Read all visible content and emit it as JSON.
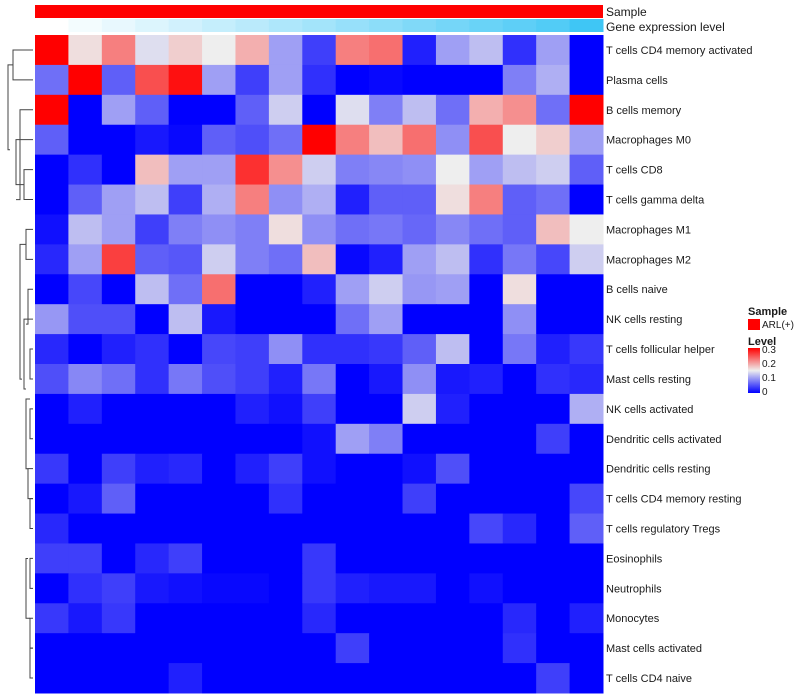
{
  "chart_data": {
    "type": "heatmap",
    "annotations": {
      "sample_label": "Sample",
      "expression_label": "Gene expression level",
      "sample_color": "#ff0000",
      "expression_colors": [
        "#ffffff",
        "#3fc6f5"
      ]
    },
    "legend": {
      "position": "right",
      "sample_title": "Sample",
      "sample_entry": "ARL(+)",
      "level_title": "Level",
      "level_ticks": [
        "0.3",
        "0.2",
        "0.1",
        "0"
      ],
      "scale": {
        "min": 0,
        "mid": 0.15,
        "max": 0.3,
        "colors": [
          "#0000ff",
          "#eeeeee",
          "#ff0000"
        ]
      }
    },
    "rows": [
      "T cells CD4 memory activated",
      "Plasma cells",
      "B cells memory",
      "Macrophages M0",
      "T cells CD8",
      "T cells gamma delta",
      "Macrophages M1",
      "Macrophages M2",
      "B cells naive",
      "NK cells resting",
      "T cells follicular helper",
      "Mast cells resting",
      "NK cells activated",
      "Dendritic cells activated",
      "Dendritic cells resting",
      "T cells CD4 memory resting",
      "T cells regulatory  Tregs",
      "Eosinophils",
      "Neutrophils",
      "Monocytes",
      "Mast cells activated",
      "T cells CD4 naive"
    ],
    "values": [
      [
        0.3,
        0.16,
        0.22,
        0.14,
        0.17,
        0.15,
        0.19,
        0.1,
        0.04,
        0.22,
        0.23,
        0.02,
        0.1,
        0.12,
        0.03,
        0.1,
        0
      ],
      [
        0.07,
        0.3,
        0.06,
        0.25,
        0.29,
        0.1,
        0.04,
        0.1,
        0.03,
        0,
        0.005,
        0,
        0,
        0,
        0.08,
        0.11,
        0
      ],
      [
        0.3,
        0,
        0.1,
        0.06,
        0,
        0,
        0.06,
        0.13,
        0,
        0.14,
        0.08,
        0.12,
        0.07,
        0.19,
        0.21,
        0.07,
        0.3
      ],
      [
        0.06,
        0,
        0,
        0.015,
        0.005,
        0.06,
        0.05,
        0.07,
        0.3,
        0.22,
        0.18,
        0.23,
        0.09,
        0.25,
        0.15,
        0.17,
        0.1
      ],
      [
        0,
        0.03,
        0,
        0.18,
        0.1,
        0.1,
        0.27,
        0.21,
        0.13,
        0.08,
        0.085,
        0.09,
        0.15,
        0.1,
        0.12,
        0.13,
        0.06
      ],
      [
        0,
        0.06,
        0.1,
        0.12,
        0.04,
        0.11,
        0.22,
        0.09,
        0.11,
        0.02,
        0.06,
        0.06,
        0.16,
        0.22,
        0.06,
        0.07,
        0
      ],
      [
        0.01,
        0.12,
        0.1,
        0.04,
        0.08,
        0.09,
        0.08,
        0.16,
        0.09,
        0.07,
        0.075,
        0.065,
        0.085,
        0.07,
        0.06,
        0.18,
        0.15
      ],
      [
        0.025,
        0.1,
        0.26,
        0.06,
        0.055,
        0.13,
        0.08,
        0.07,
        0.18,
        0.005,
        0.02,
        0.1,
        0.12,
        0.03,
        0.075,
        0.045,
        0.13
      ],
      [
        0,
        0.045,
        0,
        0.12,
        0.07,
        0.23,
        0,
        0,
        0.02,
        0.1,
        0.13,
        0.095,
        0.1,
        0,
        0.16,
        0,
        0
      ],
      [
        0.095,
        0.05,
        0.05,
        0,
        0.12,
        0.015,
        0,
        0,
        0,
        0.07,
        0.1,
        0,
        0,
        0,
        0.09,
        0,
        0
      ],
      [
        0.025,
        0,
        0.02,
        0.03,
        0,
        0.045,
        0.04,
        0.09,
        0.03,
        0.03,
        0.035,
        0.06,
        0.12,
        0,
        0.075,
        0.02,
        0.035
      ],
      [
        0.05,
        0.085,
        0.07,
        0.03,
        0.075,
        0.05,
        0.04,
        0.02,
        0.075,
        0,
        0.015,
        0.09,
        0.015,
        0.02,
        0,
        0.03,
        0.025
      ],
      [
        0,
        0.02,
        0,
        0,
        0,
        0,
        0.02,
        0.01,
        0.04,
        0,
        0,
        0.13,
        0.02,
        0,
        0,
        0,
        0.11
      ],
      [
        0,
        0,
        0,
        0,
        0,
        0,
        0,
        0,
        0.01,
        0.1,
        0.08,
        0,
        0,
        0,
        0,
        0.04,
        0
      ],
      [
        0.035,
        0,
        0.04,
        0.02,
        0.025,
        0,
        0.02,
        0.04,
        0.01,
        0,
        0,
        0.01,
        0.05,
        0,
        0,
        0,
        0
      ],
      [
        0,
        0.015,
        0.06,
        0,
        0,
        0,
        0,
        0.03,
        0,
        0,
        0,
        0.04,
        0,
        0,
        0,
        0,
        0.045
      ],
      [
        0.025,
        0,
        0,
        0,
        0,
        0,
        0,
        0,
        0,
        0,
        0,
        0,
        0,
        0.045,
        0.025,
        0,
        0.06
      ],
      [
        0.04,
        0.04,
        0,
        0.025,
        0.04,
        0,
        0,
        0,
        0.035,
        0,
        0,
        0,
        0,
        0,
        0,
        0,
        0
      ],
      [
        0,
        0.03,
        0.04,
        0.015,
        0.01,
        0.005,
        0.005,
        0,
        0.035,
        0.02,
        0.015,
        0.015,
        0,
        0.01,
        0,
        0,
        0
      ],
      [
        0.035,
        0.015,
        0.035,
        0,
        0,
        0,
        0,
        0,
        0.025,
        0,
        0,
        0,
        0,
        0,
        0.025,
        0,
        0.02
      ],
      [
        0,
        0,
        0,
        0,
        0,
        0,
        0,
        0,
        0,
        0.04,
        0,
        0,
        0,
        0,
        0.03,
        0,
        0
      ],
      [
        0,
        0,
        0,
        0,
        0.02,
        0,
        0,
        0,
        0,
        0,
        0,
        0,
        0,
        0,
        0,
        0.04,
        0
      ]
    ],
    "expression_level": [
      0,
      0.06,
      0.12,
      0.18,
      0.24,
      0.3,
      0.36,
      0.42,
      0.48,
      0.54,
      0.6,
      0.66,
      0.72,
      0.78,
      0.84,
      0.9,
      1.0
    ]
  }
}
